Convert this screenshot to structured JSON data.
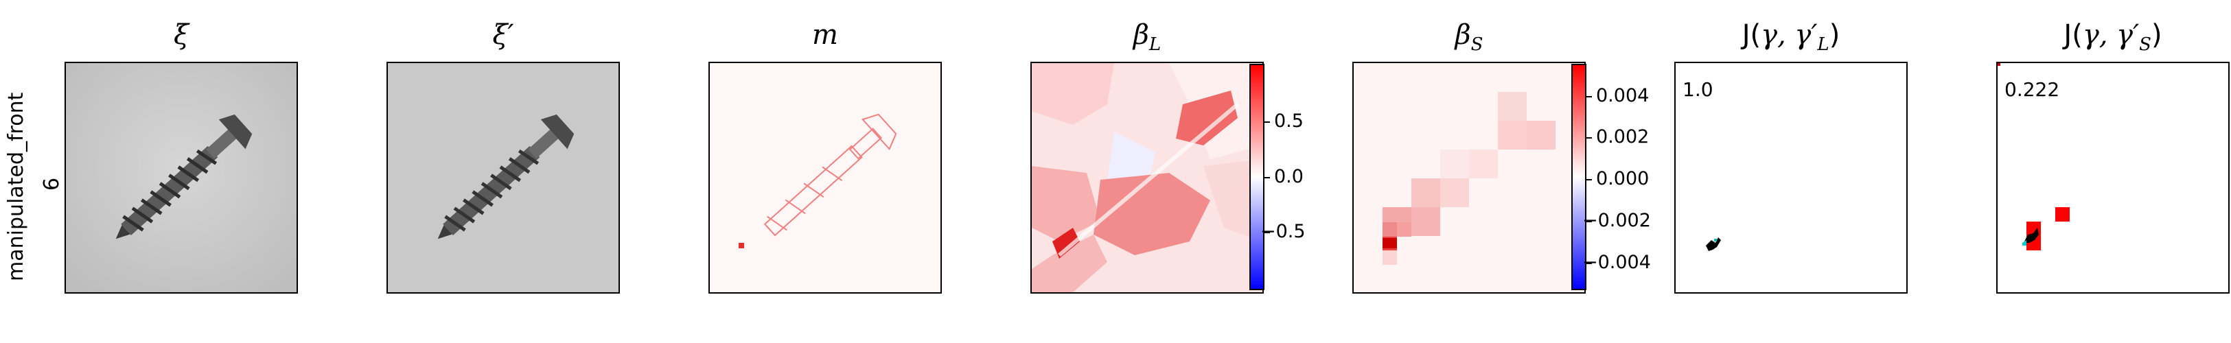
{
  "row_label": {
    "line1": "manipulated_front",
    "line2": "6"
  },
  "panels": [
    {
      "id": "xi",
      "title": "ξ"
    },
    {
      "id": "xi_prime",
      "title": "ξ′"
    },
    {
      "id": "m",
      "title": "m"
    },
    {
      "id": "beta_L",
      "title_main": "β",
      "title_sub": "L"
    },
    {
      "id": "beta_S",
      "title_main": "β",
      "title_sub": "S"
    },
    {
      "id": "J_L",
      "title_prefix": "J(",
      "title_args": "γ, γ′",
      "title_sub": "L",
      "title_suffix": ")",
      "score": "1.0"
    },
    {
      "id": "J_S",
      "title_prefix": "J(",
      "title_args": "γ, γ′",
      "title_sub": "S",
      "title_suffix": ")",
      "score": "0.222"
    }
  ],
  "colorbar_L": {
    "ticks": [
      "0.5",
      "0.0",
      "−0.5"
    ]
  },
  "colorbar_S": {
    "ticks": [
      "0.004",
      "0.002",
      "0.000",
      "−0.002",
      "−0.004"
    ]
  },
  "colors": {
    "red": "#ff0000",
    "blue": "#0000ff",
    "black": "#000000",
    "cyan": "#00d0d0"
  }
}
